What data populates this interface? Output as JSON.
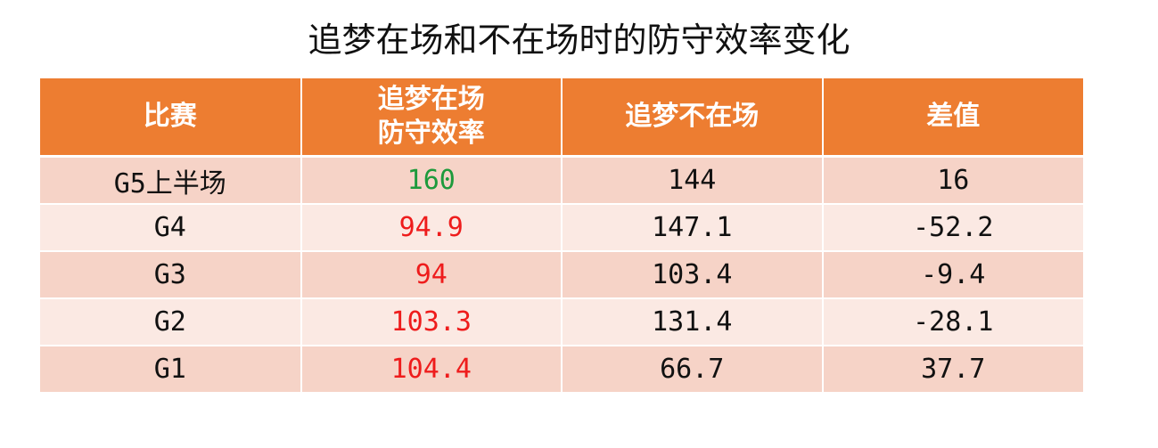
{
  "title": "追梦在场和不在场时的防守效率变化",
  "table": {
    "header": [
      "比赛",
      "追梦在场\n防守效率",
      "追梦不在场",
      "差值"
    ],
    "rows": [
      [
        "G5上半场",
        "160",
        "144",
        "16"
      ],
      [
        "G4",
        "94.9",
        "147.1",
        "-52.2"
      ],
      [
        "G3",
        "94",
        "103.4",
        "-9.4"
      ],
      [
        "G2",
        "103.3",
        "131.4",
        "-28.1"
      ],
      [
        "G1",
        "104.4",
        "66.7",
        "37.7"
      ]
    ],
    "column_1_colors": [
      "#1e9a3c",
      "#ee1c1c",
      "#ee1c1c",
      "#ee1c1c",
      "#ee1c1c"
    ]
  }
}
